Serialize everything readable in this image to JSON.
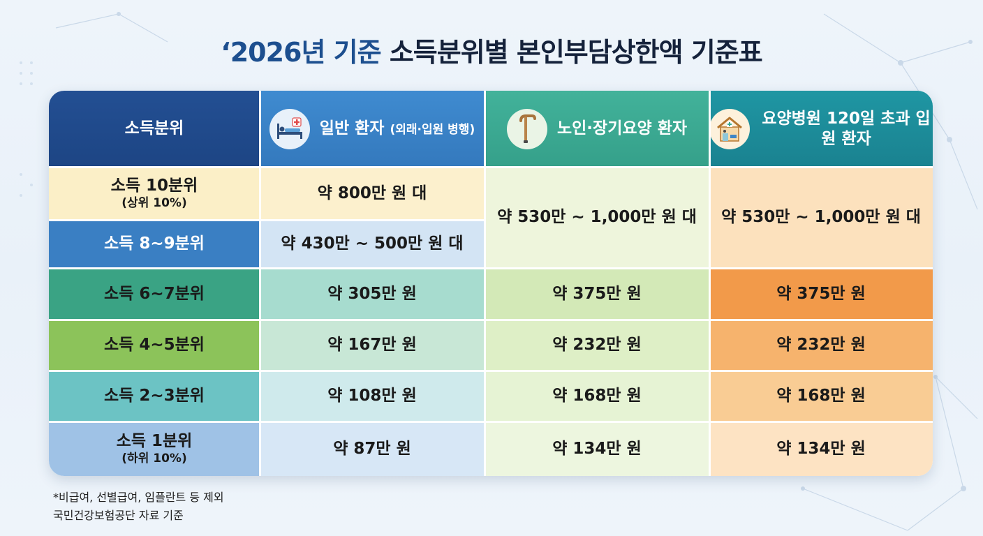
{
  "title": {
    "prefix": "‘2026년 기준",
    "rest": "소득분위별 본인부담상한액 기준표"
  },
  "header": {
    "col0": "소득분위",
    "col1": {
      "main": "일반 환자",
      "sub": "(외래·입원 병행)",
      "icon": "hospital-bed-icon"
    },
    "col2": {
      "main": "노인·장기요양 환자",
      "icon": "walking-cane-icon"
    },
    "col3": {
      "main_line1": "요양병원 120일",
      "main_line2": "초과 입원 환자",
      "icon": "nursing-hospital-icon"
    }
  },
  "rows": [
    {
      "label": "소득 10분위",
      "sub": "(상위 10%)",
      "general": "약 800만 원 대"
    },
    {
      "label": "소득 8~9분위",
      "general": "약 430만 ~ 500만 원 대"
    },
    {
      "label": "소득 6~7분위",
      "general": "약 305만 원",
      "elderly": "약 375만 원",
      "nursing": "약 375만 원"
    },
    {
      "label": "소득 4~5분위",
      "general": "약 167만 원",
      "elderly": "약 232만 원",
      "nursing": "약 232만 원"
    },
    {
      "label": "소득 2~3분위",
      "general": "약 108만 원",
      "elderly": "약 168만 원",
      "nursing": "약 168만 원"
    },
    {
      "label": "소득 1분위",
      "sub": "(하위 10%)",
      "general": "약 87만 원",
      "elderly": "약 134만 원",
      "nursing": "약 134만 원"
    }
  ],
  "merged": {
    "elderly_top": "약 530만 ~ 1,000만 원 대",
    "nursing_top": "약 530만 ~ 1,000만 원 대"
  },
  "footnote": {
    "line1": "*비급여, 선별급여, 임플란트 등 제외",
    "line2": "국민건강보험공단 자료 기준"
  },
  "colors": {
    "header_col0": "#1f4a8c",
    "header_col1": "#3d85c6",
    "header_col2": "#3aa98f",
    "header_col3": "#1f8a9a",
    "accent_orange": "#f29a4a"
  }
}
